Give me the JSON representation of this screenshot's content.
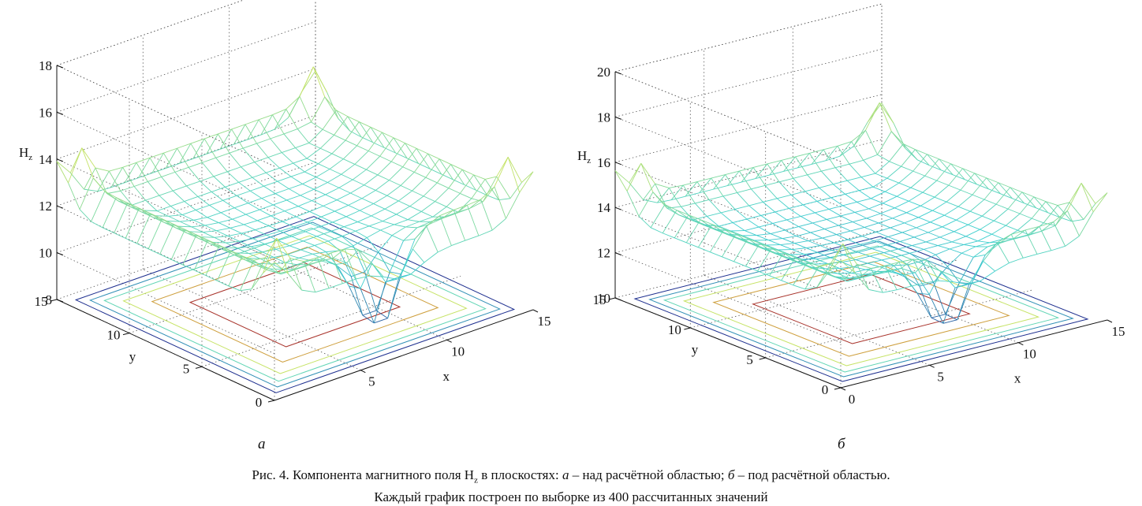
{
  "figure": {
    "panel_labels": [
      "а",
      "б"
    ],
    "caption": {
      "line1_prefix": "Рис. 4. Компонента магнитного поля H",
      "line1_sub": "z",
      "line1_mid": " в плоскостях: ",
      "a_letter": "а",
      "a_text": " – над расчётной областью; ",
      "b_letter": "б",
      "b_text": " – под расчётной областью.",
      "line2": "Каждый график построен по выборке из 400 рассчитанных значений"
    }
  },
  "colors": {
    "low": "#1e2f8f",
    "mid": "#3fd0d0",
    "high": "#e8e84a",
    "peak": "#a8322a",
    "grid": "#555555",
    "axis": "#111111"
  },
  "chart_data": [
    {
      "type": "surface",
      "panel": "а",
      "xlabel": "x",
      "ylabel": "y",
      "zlabel": "H",
      "zlabel_sub": "z",
      "xlim": [
        0,
        15
      ],
      "ylim": [
        0,
        15
      ],
      "zlim": [
        8,
        18
      ],
      "xticks": [
        5,
        10,
        15
      ],
      "yticks": [
        0,
        5,
        10,
        15
      ],
      "zticks": [
        8,
        10,
        12,
        14,
        16,
        18
      ],
      "grid": true,
      "contour_on_base": true,
      "samples": 400,
      "surface": {
        "corner_peak": 17.5,
        "edge": 14.0,
        "center": 11.5,
        "base": 9.5,
        "near_corner_min": 8.0
      }
    },
    {
      "type": "surface",
      "panel": "б",
      "xlabel": "x",
      "ylabel": "y",
      "zlabel": "H",
      "zlabel_sub": "z",
      "xlim": [
        0,
        15
      ],
      "ylim": [
        0,
        15
      ],
      "zlim": [
        10,
        20
      ],
      "xticks": [
        0,
        5,
        10,
        15
      ],
      "yticks": [
        0,
        5,
        10,
        15
      ],
      "zticks": [
        10,
        12,
        14,
        16,
        18,
        20
      ],
      "grid": true,
      "contour_on_base": true,
      "samples": 400,
      "surface": {
        "corner_peak": 19.0,
        "edge": 15.5,
        "center": 13.0,
        "base": 11.5,
        "near_corner_min": 10.0
      }
    }
  ]
}
